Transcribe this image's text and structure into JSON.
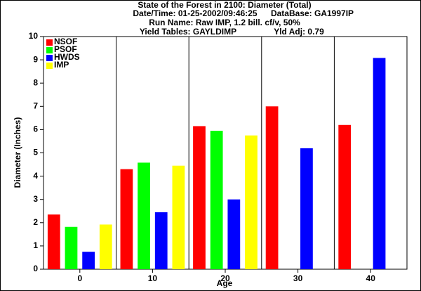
{
  "chart_data": {
    "type": "bar",
    "title": "State of the Forest in 2100: Diameter (Total)",
    "date_time": "Date/Time: 01-25-2002/09:46:25",
    "database": "DataBase: GA1997IP",
    "run_name": "Run Name: Raw IMP, 1.2 bill. cf/v, 50%",
    "yield_tables": "Yield Tables: GAYLDIMP",
    "yld_adj": "Yld Adj: 0.79",
    "x_label": "Age",
    "y_label": "Diameter (Inches)",
    "categories": [
      "0",
      "10",
      "20",
      "30",
      "40"
    ],
    "series": [
      {
        "name": "NSOF",
        "color": "#ff0000",
        "values": [
          2.35,
          4.3,
          6.15,
          7.0,
          6.2
        ]
      },
      {
        "name": "PSOF",
        "color": "#00ff00",
        "values": [
          1.82,
          4.58,
          5.95,
          null,
          null
        ]
      },
      {
        "name": "HWDS",
        "color": "#0000ff",
        "values": [
          0.75,
          2.45,
          3.0,
          5.2,
          9.08
        ]
      },
      {
        "name": "IMP",
        "color": "#ffff00",
        "values": [
          1.92,
          4.45,
          5.75,
          null,
          null
        ]
      }
    ],
    "ylim": [
      0,
      10
    ],
    "yticks": [
      0,
      1,
      2,
      3,
      4,
      5,
      6,
      7,
      8,
      9,
      10
    ],
    "legend": "upper left",
    "group_dividers": true
  }
}
